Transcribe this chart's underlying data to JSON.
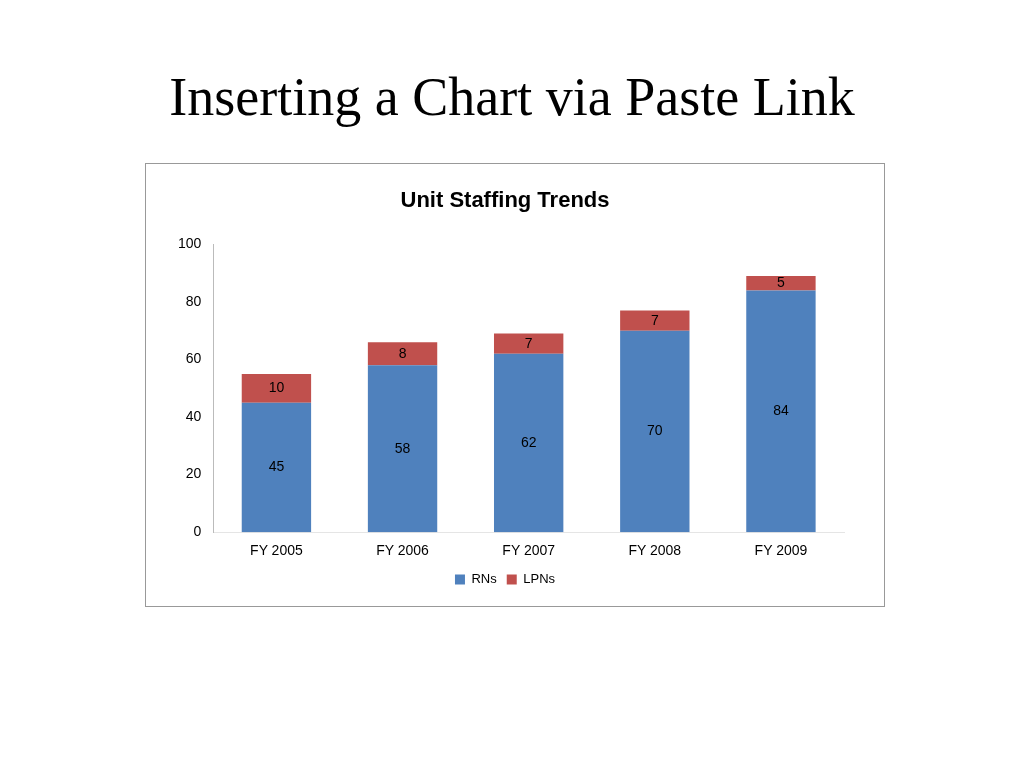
{
  "chart_data": {
    "type": "bar",
    "title": "Inserting a Chart via Paste Link",
    "subtitle": "Unit Staffing Trends",
    "categories": [
      "FY 2005",
      "FY 2006",
      "FY 2007",
      "FY 2008",
      "FY 2009"
    ],
    "series": [
      {
        "name": "RNs",
        "color": "#4f81bd",
        "values": [
          45,
          58,
          62,
          70,
          84
        ]
      },
      {
        "name": "LPNs",
        "color": "#c0504d",
        "values": [
          10,
          8,
          7,
          7,
          5
        ]
      }
    ],
    "stacked": true,
    "ylim": [
      0,
      100
    ],
    "yticks": [
      0,
      20,
      40,
      60,
      80,
      100
    ],
    "grid": false,
    "legend": "bottom",
    "data_labels": true
  }
}
